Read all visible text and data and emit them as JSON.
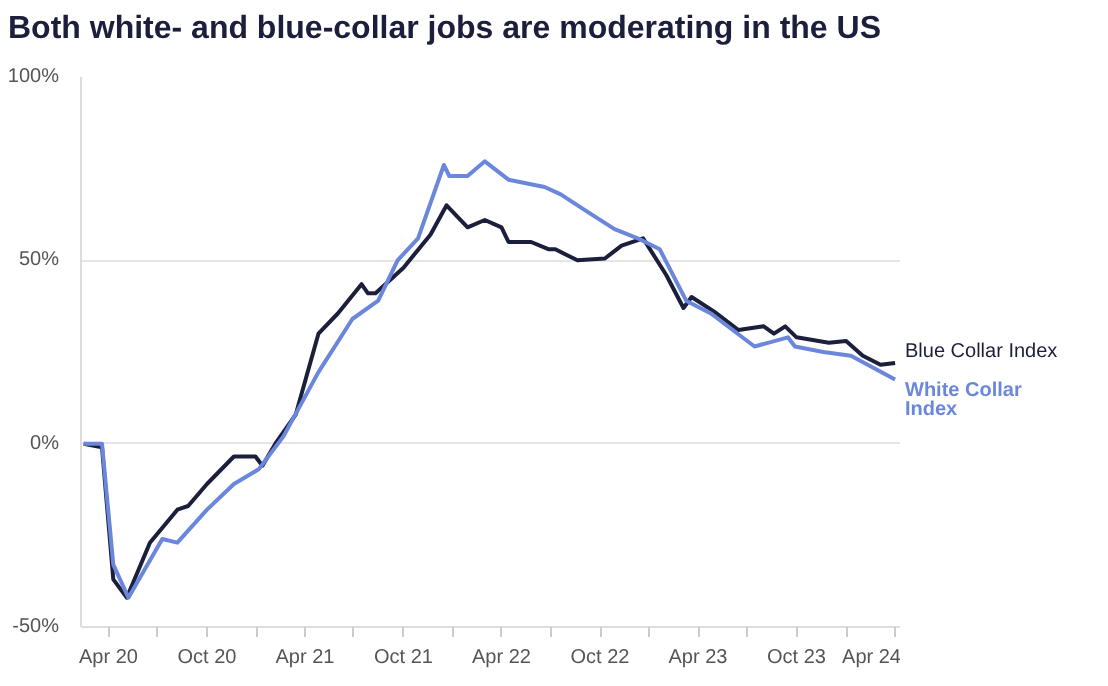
{
  "chart_data": {
    "type": "line",
    "title": "Both white- and blue-collar jobs are moderating in the US",
    "xlim": [
      "2020-02-10",
      "2024-04-12"
    ],
    "xticks": [
      {
        "value": "2020-04-01",
        "label": "Apr 20"
      },
      {
        "value": "2020-07-01",
        "label": null
      },
      {
        "value": "2020-10-01",
        "label": "Oct 20"
      },
      {
        "value": "2021-01-01",
        "label": null
      },
      {
        "value": "2021-04-01",
        "label": "Apr 21"
      },
      {
        "value": "2021-07-01",
        "label": null
      },
      {
        "value": "2021-10-01",
        "label": "Oct 21"
      },
      {
        "value": "2022-01-01",
        "label": null
      },
      {
        "value": "2022-04-01",
        "label": "Apr 22"
      },
      {
        "value": "2022-07-01",
        "label": null
      },
      {
        "value": "2022-10-01",
        "label": "Oct 22"
      },
      {
        "value": "2023-01-01",
        "label": null
      },
      {
        "value": "2023-04-01",
        "label": "Apr 23"
      },
      {
        "value": "2023-07-01",
        "label": null
      },
      {
        "value": "2023-10-01",
        "label": "Oct 23"
      },
      {
        "value": "2024-01-01",
        "label": null
      },
      {
        "value": "2024-04-01",
        "label": "Apr 24"
      }
    ],
    "ylim": [
      -50,
      100
    ],
    "yticks": [
      {
        "value": -50,
        "label": "-50%"
      },
      {
        "value": 0,
        "label": "0%"
      },
      {
        "value": 50,
        "label": "50%"
      },
      {
        "value": 100,
        "label": "100%"
      }
    ],
    "grid": "y",
    "series": [
      {
        "name": "Blue Collar Index",
        "color": "#1b1f3b",
        "x": [
          "2020-02-15",
          "2020-03-20",
          "2020-04-10",
          "2020-05-05",
          "2020-06-17",
          "2020-08-07",
          "2020-08-27",
          "2020-10-01",
          "2020-11-20",
          "2020-12-30",
          "2021-01-12",
          "2021-02-05",
          "2021-03-15",
          "2021-04-26",
          "2021-06-01",
          "2021-07-15",
          "2021-07-27",
          "2021-08-10",
          "2021-10-01",
          "2021-11-20",
          "2021-12-20",
          "2022-01-28",
          "2022-03-01",
          "2022-04-01",
          "2022-04-14",
          "2022-05-26",
          "2022-06-28",
          "2022-07-10",
          "2022-08-20",
          "2022-10-10",
          "2022-11-10",
          "2022-12-20",
          "2023-02-01",
          "2023-03-05",
          "2023-03-20",
          "2023-05-01",
          "2023-06-15",
          "2023-08-01",
          "2023-08-20",
          "2023-09-10",
          "2023-10-01",
          "2023-11-30",
          "2024-01-01",
          "2024-02-01",
          "2024-03-05",
          "2024-04-01"
        ],
        "values": [
          0,
          -1,
          -37,
          -42,
          -27,
          -18,
          -17,
          -11,
          -3.5,
          -3.5,
          -6,
          0,
          8,
          30,
          35.5,
          43.5,
          41,
          41,
          48,
          57,
          65,
          59,
          61,
          59,
          55,
          55,
          53,
          53,
          50,
          50.5,
          54,
          56,
          46,
          37,
          40,
          36,
          31,
          32,
          30,
          32,
          29,
          27.5,
          28,
          24,
          21.5,
          22
        ]
      },
      {
        "name": "White Collar Index",
        "color": "#6b87dc",
        "x": [
          "2020-02-15",
          "2020-03-20",
          "2020-04-10",
          "2020-05-08",
          "2020-07-10",
          "2020-08-07",
          "2020-10-01",
          "2020-11-20",
          "2021-01-05",
          "2021-02-20",
          "2021-04-26",
          "2021-06-28",
          "2021-08-15",
          "2021-09-20",
          "2021-10-28",
          "2021-12-15",
          "2021-12-25",
          "2022-01-28",
          "2022-03-01",
          "2022-04-14",
          "2022-06-20",
          "2022-07-20",
          "2022-09-10",
          "2022-10-28",
          "2022-12-10",
          "2023-01-20",
          "2023-03-10",
          "2023-04-25",
          "2023-07-15",
          "2023-09-15",
          "2023-09-28",
          "2023-11-20",
          "2024-01-10",
          "2024-04-01"
        ],
        "values": [
          0,
          0,
          -33,
          -42,
          -26,
          -27,
          -18,
          -11,
          -7,
          2,
          19.5,
          34,
          39,
          50,
          56,
          76,
          73,
          73,
          77,
          72,
          70,
          68,
          63,
          58.5,
          56,
          53,
          39,
          35.5,
          26.5,
          29,
          26.5,
          25,
          24,
          17.5
        ]
      }
    ]
  }
}
